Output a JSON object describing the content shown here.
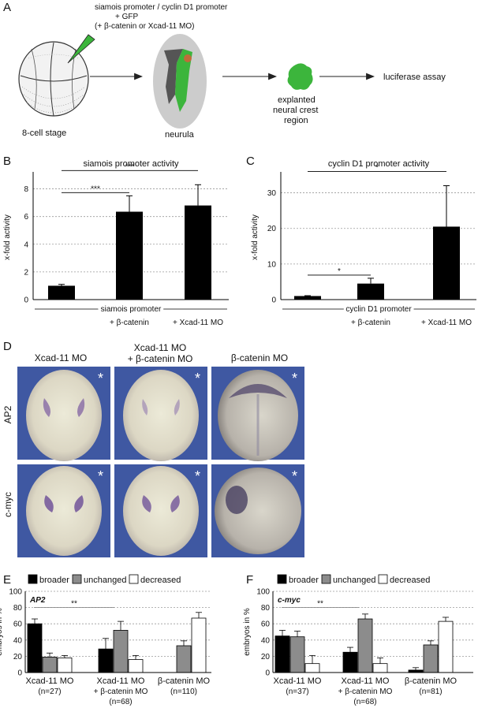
{
  "panelA": {
    "letter": "A",
    "injection_line1": "siamois promoter / cyclin D1 promoter",
    "injection_line2": "+ GFP",
    "injection_line3": "(+ β-catenin or Xcad-11 MO)",
    "stage1": "8-cell stage",
    "stage2": "neurula",
    "explant_line1": "explanted",
    "explant_line2": "neural crest",
    "explant_line3": "region",
    "assay": "luciferase assay"
  },
  "panelD": {
    "letter": "D",
    "col1": "Xcad-11 MO",
    "col2_line1": "Xcad-11 MO",
    "col2_line2": "+ β-catenin MO",
    "col3": "β-catenin MO",
    "row1": "AP2",
    "row2": "c-myc",
    "asterisk": "*"
  },
  "chart_data": [
    {
      "panel": "B",
      "type": "bar",
      "title": "siamois promoter activity",
      "ylabel": "x-fold activity",
      "group_label": "siamois promoter",
      "categories": [
        "",
        "+ β-catenin",
        "+ Xcad-11 MO"
      ],
      "values": [
        1.0,
        6.35,
        6.8
      ],
      "errors": [
        0.1,
        1.15,
        1.5
      ],
      "ylim": [
        0,
        9
      ],
      "yticks": [
        0,
        2,
        4,
        6,
        8
      ],
      "grid": true,
      "significance": [
        {
          "from": 0,
          "to": 1,
          "label": "***"
        },
        {
          "from": 0,
          "to": 2,
          "label": "***"
        }
      ]
    },
    {
      "panel": "C",
      "type": "bar",
      "title": "cyclin D1 promoter activity",
      "ylabel": "x-fold activity",
      "group_label": "cyclin D1  promoter",
      "categories": [
        "",
        "+ β-catenin",
        "+ Xcad-11 MO"
      ],
      "values": [
        1.0,
        4.5,
        20.5
      ],
      "errors": [
        0.1,
        1.5,
        11.5
      ],
      "ylim": [
        0,
        35
      ],
      "yticks": [
        0,
        10,
        20,
        30
      ],
      "grid": true,
      "significance": [
        {
          "from": 0,
          "to": 1,
          "label": "*"
        },
        {
          "from": 0,
          "to": 2,
          "label": "*"
        }
      ]
    },
    {
      "panel": "E",
      "type": "bar",
      "title": "AP2",
      "ylabel": "embryos in %",
      "legend": [
        "broader",
        "unchanged",
        "decreased"
      ],
      "legend_position": "top",
      "categories": [
        "Xcad-11 MO",
        "Xcad-11 MO",
        "β-catenin MO"
      ],
      "category_sub": [
        "(n=27)",
        "+ β-catenin MO",
        "(n=110)"
      ],
      "category_sub2": [
        "",
        "(n=68)",
        ""
      ],
      "series": [
        {
          "name": "broader",
          "values": [
            60,
            29,
            0
          ],
          "errors": [
            6,
            13,
            0
          ]
        },
        {
          "name": "unchanged",
          "values": [
            19,
            52,
            33
          ],
          "errors": [
            5,
            11,
            6
          ]
        },
        {
          "name": "decreased",
          "values": [
            18,
            16,
            67
          ],
          "errors": [
            3,
            5,
            7
          ]
        }
      ],
      "ylim": [
        0,
        100
      ],
      "yticks": [
        0,
        20,
        40,
        60,
        80,
        100
      ],
      "grid": true,
      "significance": [
        {
          "label": "**"
        }
      ]
    },
    {
      "panel": "F",
      "type": "bar",
      "title": "c-myc",
      "ylabel": "embryos in %",
      "legend": [
        "broader",
        "unchanged",
        "decreased"
      ],
      "legend_position": "top",
      "categories": [
        "Xcad-11 MO",
        "Xcad-11 MO",
        "β-catenin MO"
      ],
      "category_sub": [
        "(n=37)",
        "+ β-catenin MO",
        "(n=81)"
      ],
      "category_sub2": [
        "",
        "(n=68)",
        ""
      ],
      "series": [
        {
          "name": "broader",
          "values": [
            45,
            25,
            3
          ],
          "errors": [
            7,
            6,
            3
          ]
        },
        {
          "name": "unchanged",
          "values": [
            44,
            66,
            34
          ],
          "errors": [
            7,
            6,
            5
          ]
        },
        {
          "name": "decreased",
          "values": [
            11,
            11,
            63
          ],
          "errors": [
            10,
            7,
            5
          ]
        }
      ],
      "ylim": [
        0,
        100
      ],
      "yticks": [
        0,
        20,
        40,
        60,
        80,
        100
      ],
      "grid": true,
      "significance": [
        {
          "label": "**"
        }
      ]
    }
  ],
  "colors": {
    "broader": "#000000",
    "unchanged": "#8c8c8c",
    "decreased": "#ffffff",
    "gfp": "#3cb53c",
    "embryo_bg": "#cccccc",
    "photo_bg": "#3f58a2"
  }
}
